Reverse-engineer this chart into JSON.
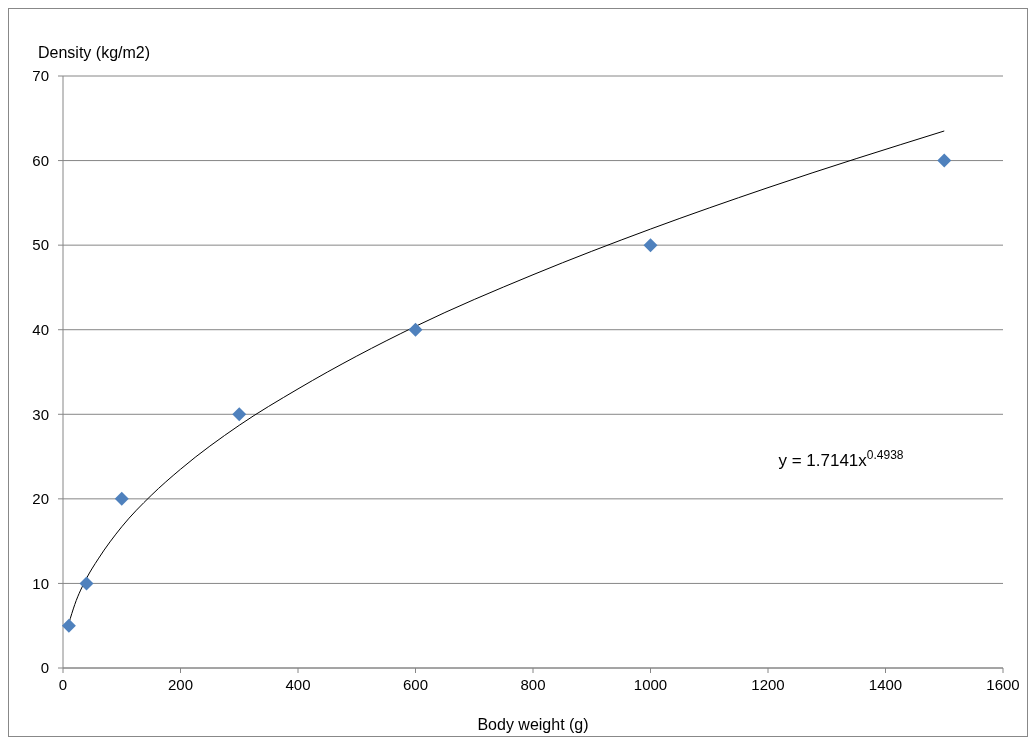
{
  "chart_data": {
    "type": "scatter",
    "xlabel": "Body weight (g)",
    "ylabel": "Density (kg/m2)",
    "xlim": [
      0,
      1600
    ],
    "xticks": [
      0,
      200,
      400,
      600,
      800,
      1000,
      1200,
      1400,
      1600
    ],
    "ylim": [
      0,
      70
    ],
    "yticks": [
      0,
      10,
      20,
      30,
      40,
      50,
      60,
      70
    ],
    "grid": "y",
    "marker": "diamond",
    "series": [
      {
        "color": "#4f81bd",
        "x": [
          10,
          40,
          100,
          300,
          600,
          1000,
          1500
        ],
        "values": [
          5,
          10,
          20,
          30,
          40,
          50,
          60
        ]
      },
      {
        "type": "line",
        "color": "#000000",
        "marker": "none",
        "line_style": "solid",
        "x": [
          10,
          20,
          40,
          60,
          100,
          150,
          200,
          300,
          400,
          600,
          800,
          1000,
          1200,
          1500
        ],
        "values": [
          5.3,
          7.5,
          10.6,
          12.9,
          16.7,
          20.4,
          23.5,
          28.7,
          33,
          40.4,
          46.5,
          51.9,
          56.8,
          63.5
        ]
      }
    ],
    "annotations": [
      "y = 1.7141x$^{0.4938}$"
    ]
  }
}
